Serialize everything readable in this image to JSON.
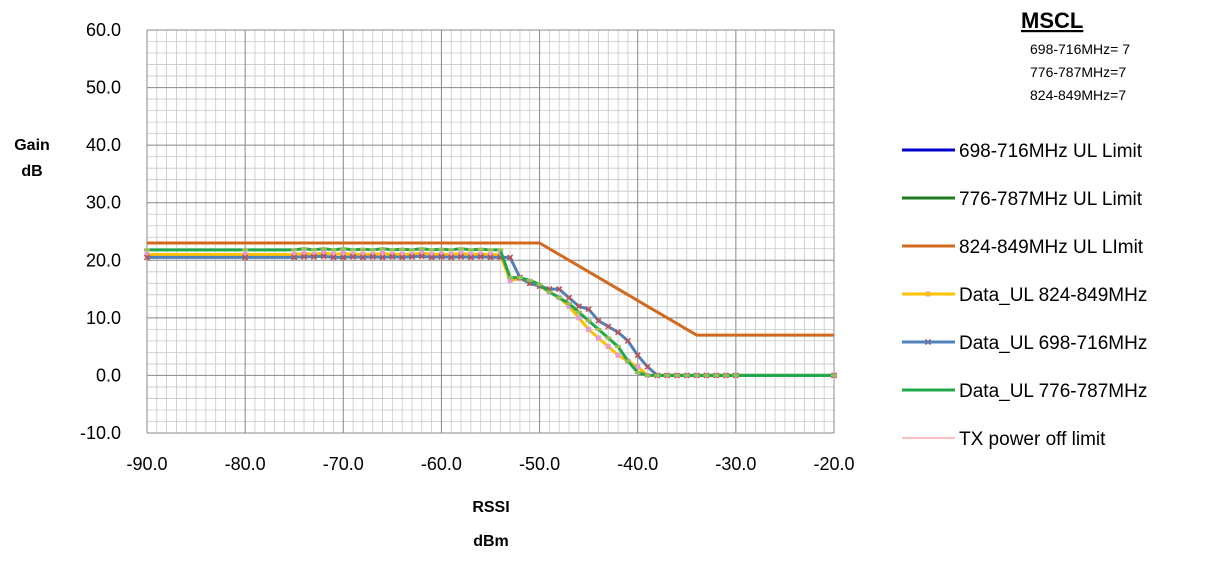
{
  "mscl": {
    "title": "MSCL",
    "lines": [
      "698-716MHz= 7",
      "776-787MHz=7",
      "824-849MHz=7"
    ]
  },
  "chart_data": {
    "type": "line",
    "title": "",
    "xlabel_line1": "RSSI",
    "xlabel_line2": "dBm",
    "ylabel_line1": "Gain",
    "ylabel_line2": "dB",
    "xlim": [
      -90,
      -20
    ],
    "ylim": [
      -10,
      60
    ],
    "x_ticks": [
      -90,
      -80,
      -70,
      -60,
      -50,
      -40,
      -30,
      -20
    ],
    "x_tick_labels": [
      "-90.0",
      "-80.0",
      "-70.0",
      "-60.0",
      "-50.0",
      "-40.0",
      "-30.0",
      "-20.0"
    ],
    "y_ticks": [
      60,
      50,
      40,
      30,
      20,
      10,
      0,
      -10
    ],
    "y_tick_labels": [
      "60.0",
      "50.0",
      "40.0",
      "30.0",
      "20.0",
      "10.0",
      "0.0",
      "-10.0"
    ],
    "grid": true,
    "legend_position": "right",
    "series": [
      {
        "name": "698-716MHz UL Limit",
        "color": "#0000cc",
        "marker": "none",
        "x": [
          -90,
          -54,
          -53,
          -20
        ],
        "y": [
          20.5,
          20.5,
          20.5,
          20.5
        ],
        "draw": false
      },
      {
        "name": "776-787MHz UL Limit",
        "color": "#1e7a1e",
        "marker": "none",
        "x": [
          -90,
          -54
        ],
        "y": [
          21.5,
          21.5
        ],
        "draw": false
      },
      {
        "name": "824-849MHz UL LImit",
        "color": "#d2691e",
        "marker": "none",
        "x": [
          -90,
          -50,
          -34,
          -20
        ],
        "y": [
          23,
          23,
          7,
          7
        ],
        "draw": true
      },
      {
        "name": "Data_UL 824-849MHz",
        "color": "#ffc000",
        "marker": "square",
        "marker_color": "#e39bd0",
        "x": [
          -90,
          -80,
          -75,
          -74,
          -73,
          -72,
          -71,
          -70,
          -69,
          -68,
          -67,
          -66,
          -65,
          -64,
          -63,
          -62,
          -61,
          -60,
          -59,
          -58,
          -57,
          -56,
          -55,
          -54,
          -53,
          -52,
          -51,
          -50,
          -49,
          -48,
          -47,
          -46,
          -45,
          -44,
          -43,
          -42,
          -41,
          -40,
          -39,
          -38,
          -37,
          -36,
          -35,
          -34,
          -33,
          -32,
          -31,
          -30,
          -20
        ],
        "y": [
          21.0,
          21.0,
          21.0,
          21.2,
          21.0,
          21.3,
          21.0,
          21.2,
          21.0,
          21.1,
          21.0,
          21.2,
          21.0,
          21.1,
          21.0,
          21.3,
          21.0,
          21.1,
          21.0,
          21.2,
          21.0,
          21.1,
          21.0,
          21.0,
          16.5,
          16.8,
          16.0,
          15.5,
          14.5,
          13.5,
          12.0,
          10.0,
          8.0,
          6.5,
          5.0,
          3.5,
          2.5,
          1.5,
          0,
          0,
          0,
          0,
          0,
          0,
          0,
          0,
          0,
          0,
          0
        ],
        "draw": true
      },
      {
        "name": "Data_UL 698-716MHz",
        "color": "#4f81bd",
        "marker": "x",
        "marker_color": "#c0504d",
        "x": [
          -90,
          -80,
          -75,
          -74,
          -73,
          -72,
          -71,
          -70,
          -69,
          -68,
          -67,
          -66,
          -65,
          -64,
          -63,
          -62,
          -61,
          -60,
          -59,
          -58,
          -57,
          -56,
          -55,
          -54,
          -53,
          -52,
          -51,
          -50,
          -49,
          -48,
          -47,
          -46,
          -45,
          -44,
          -43,
          -42,
          -41,
          -40,
          -39,
          -38,
          -37,
          -36,
          -35,
          -34,
          -33,
          -32,
          -31,
          -30,
          -20
        ],
        "y": [
          20.5,
          20.5,
          20.5,
          20.6,
          20.6,
          20.7,
          20.5,
          20.5,
          20.6,
          20.5,
          20.6,
          20.5,
          20.6,
          20.5,
          20.6,
          20.7,
          20.5,
          20.6,
          20.5,
          20.6,
          20.5,
          20.6,
          20.5,
          20.5,
          20.5,
          17.0,
          16.0,
          15.5,
          15.0,
          15.0,
          13.5,
          12.0,
          11.5,
          9.5,
          8.5,
          7.5,
          6.0,
          3.5,
          1.5,
          0,
          0,
          0,
          0,
          0,
          0,
          0,
          0,
          0,
          0
        ],
        "draw": true
      },
      {
        "name": "Data_UL 776-787MHz",
        "color": "#1fa84a",
        "marker": "dash",
        "marker_color": "#9bbb59",
        "x": [
          -90,
          -80,
          -75,
          -74,
          -73,
          -72,
          -71,
          -70,
          -69,
          -68,
          -67,
          -66,
          -65,
          -64,
          -63,
          -62,
          -61,
          -60,
          -59,
          -58,
          -57,
          -56,
          -55,
          -54,
          -53,
          -52,
          -51,
          -50,
          -49,
          -48,
          -47,
          -46,
          -45,
          -44,
          -43,
          -42,
          -41,
          -40,
          -39,
          -38,
          -37,
          -36,
          -35,
          -34,
          -33,
          -32,
          -31,
          -30,
          -20
        ],
        "y": [
          21.8,
          21.8,
          21.8,
          22.0,
          21.8,
          22.0,
          21.8,
          22.0,
          21.8,
          21.9,
          21.8,
          22.0,
          21.8,
          21.9,
          21.8,
          22.0,
          21.8,
          21.9,
          21.8,
          22.0,
          21.8,
          21.9,
          21.8,
          21.8,
          17.0,
          17.0,
          16.5,
          15.8,
          14.5,
          13.5,
          12.5,
          11.0,
          9.5,
          8.0,
          6.5,
          5.0,
          2.5,
          0.5,
          0,
          0,
          0,
          0,
          0,
          0,
          0,
          0,
          0,
          0,
          0
        ],
        "draw": true
      },
      {
        "name": "TX  power off limit",
        "color": "#ff8080",
        "marker": "none",
        "thin": true,
        "x": [],
        "y": [],
        "draw": false
      }
    ]
  }
}
